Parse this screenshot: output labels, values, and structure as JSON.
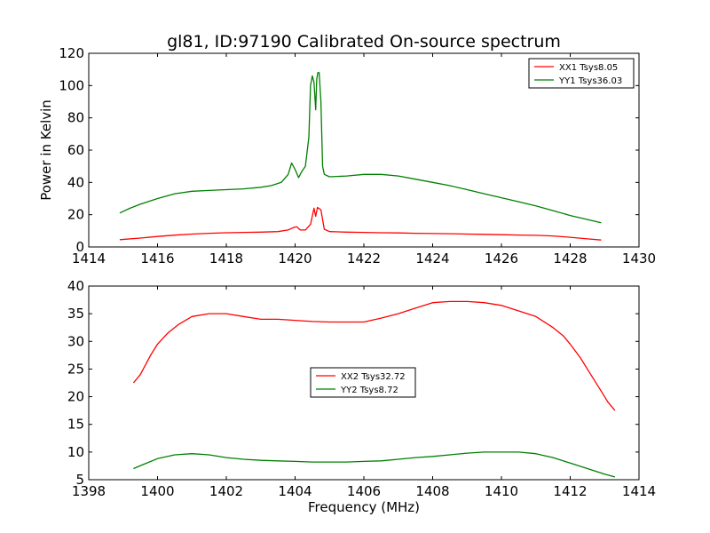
{
  "chart_data": [
    {
      "type": "line",
      "title": "gl81, ID:97190 Calibrated On-source spectrum",
      "xlabel": "",
      "ylabel": "Power in Kelvin",
      "xlim": [
        1414,
        1430
      ],
      "ylim": [
        0,
        120
      ],
      "xticks": [
        "1414",
        "1416",
        "1418",
        "1420",
        "1422",
        "1424",
        "1426",
        "1428",
        "1430"
      ],
      "yticks": [
        "0",
        "20",
        "40",
        "60",
        "80",
        "100",
        "120"
      ],
      "legend_position": "top-right",
      "grid": false,
      "series": [
        {
          "name": "XX1 Tsys8.05",
          "color": "#ff0000",
          "x": [
            1414.9,
            1415.5,
            1416.0,
            1416.5,
            1417.0,
            1417.5,
            1418.0,
            1418.5,
            1419.0,
            1419.5,
            1419.8,
            1419.95,
            1420.05,
            1420.15,
            1420.3,
            1420.45,
            1420.55,
            1420.6,
            1420.65,
            1420.75,
            1420.85,
            1421.0,
            1421.5,
            1422.0,
            1422.5,
            1423.0,
            1423.5,
            1424.0,
            1424.5,
            1425.0,
            1425.5,
            1426.0,
            1426.5,
            1427.0,
            1427.5,
            1428.0,
            1428.5,
            1428.9
          ],
          "y": [
            4.5,
            5.5,
            6.5,
            7.3,
            8.0,
            8.5,
            8.8,
            9.0,
            9.2,
            9.5,
            10.5,
            12.0,
            12.5,
            10.5,
            10.5,
            14.0,
            24.0,
            19.0,
            24.5,
            23.0,
            11.0,
            9.5,
            9.2,
            9.0,
            8.8,
            8.7,
            8.5,
            8.3,
            8.2,
            8.0,
            7.8,
            7.6,
            7.4,
            7.2,
            6.8,
            6.0,
            5.0,
            4.3
          ]
        },
        {
          "name": "YY1 Tsys36.03",
          "color": "#008000",
          "x": [
            1414.9,
            1415.2,
            1415.5,
            1416.0,
            1416.5,
            1417.0,
            1417.5,
            1418.0,
            1418.5,
            1419.0,
            1419.3,
            1419.6,
            1419.8,
            1419.9,
            1420.0,
            1420.1,
            1420.2,
            1420.3,
            1420.4,
            1420.45,
            1420.5,
            1420.55,
            1420.6,
            1420.63,
            1420.66,
            1420.7,
            1420.75,
            1420.8,
            1420.85,
            1421.0,
            1421.5,
            1422.0,
            1422.5,
            1423.0,
            1423.5,
            1424.0,
            1424.5,
            1425.0,
            1425.5,
            1426.0,
            1426.5,
            1427.0,
            1427.5,
            1428.0,
            1428.5,
            1428.9
          ],
          "y": [
            21.0,
            24.0,
            26.5,
            30.0,
            33.0,
            34.5,
            35.0,
            35.5,
            36.0,
            37.0,
            38.0,
            40.0,
            45.0,
            52.0,
            48.0,
            43.0,
            47.0,
            50.0,
            68.0,
            100.0,
            106.0,
            102.0,
            85.0,
            104.0,
            108.0,
            108.0,
            90.0,
            50.0,
            45.0,
            43.5,
            44.0,
            45.0,
            45.0,
            44.0,
            42.0,
            40.0,
            38.0,
            35.5,
            33.0,
            30.5,
            28.0,
            25.5,
            22.5,
            19.5,
            17.0,
            15.0
          ]
        }
      ]
    },
    {
      "type": "line",
      "title": "",
      "xlabel": "Frequency (MHz)",
      "ylabel": "",
      "xlim": [
        1398,
        1414
      ],
      "ylim": [
        5,
        40
      ],
      "xticks": [
        "1398",
        "1400",
        "1402",
        "1404",
        "1406",
        "1408",
        "1410",
        "1412",
        "1414"
      ],
      "yticks": [
        "5",
        "10",
        "15",
        "20",
        "25",
        "30",
        "35",
        "40"
      ],
      "legend_position": "center",
      "grid": false,
      "series": [
        {
          "name": "XX2 Tsys32.72",
          "color": "#ff0000",
          "x": [
            1399.3,
            1399.5,
            1399.8,
            1400.0,
            1400.3,
            1400.6,
            1401.0,
            1401.5,
            1402.0,
            1402.5,
            1403.0,
            1403.5,
            1404.0,
            1404.5,
            1405.0,
            1405.5,
            1406.0,
            1406.5,
            1407.0,
            1407.5,
            1408.0,
            1408.5,
            1409.0,
            1409.5,
            1410.0,
            1410.5,
            1411.0,
            1411.5,
            1411.8,
            1412.0,
            1412.3,
            1412.6,
            1412.9,
            1413.1,
            1413.3
          ],
          "y": [
            22.5,
            24.0,
            27.5,
            29.5,
            31.5,
            33.0,
            34.5,
            35.0,
            35.0,
            34.5,
            34.0,
            34.0,
            33.8,
            33.6,
            33.5,
            33.5,
            33.5,
            34.2,
            35.0,
            36.0,
            37.0,
            37.2,
            37.2,
            37.0,
            36.5,
            35.5,
            34.5,
            32.5,
            31.0,
            29.5,
            27.0,
            24.0,
            21.0,
            19.0,
            17.5
          ]
        },
        {
          "name": "YY2 Tsys8.72",
          "color": "#008000",
          "x": [
            1399.3,
            1399.6,
            1400.0,
            1400.5,
            1401.0,
            1401.5,
            1402.0,
            1402.5,
            1403.0,
            1403.5,
            1404.0,
            1404.5,
            1405.0,
            1405.5,
            1406.0,
            1406.5,
            1407.0,
            1407.5,
            1408.0,
            1408.5,
            1409.0,
            1409.5,
            1410.0,
            1410.5,
            1411.0,
            1411.5,
            1412.0,
            1412.5,
            1413.0,
            1413.3
          ],
          "y": [
            7.0,
            7.8,
            8.8,
            9.5,
            9.7,
            9.5,
            9.0,
            8.7,
            8.5,
            8.4,
            8.3,
            8.2,
            8.2,
            8.2,
            8.3,
            8.4,
            8.7,
            9.0,
            9.2,
            9.5,
            9.8,
            10.0,
            10.0,
            10.0,
            9.7,
            9.0,
            8.0,
            7.0,
            6.0,
            5.5
          ]
        }
      ]
    }
  ]
}
